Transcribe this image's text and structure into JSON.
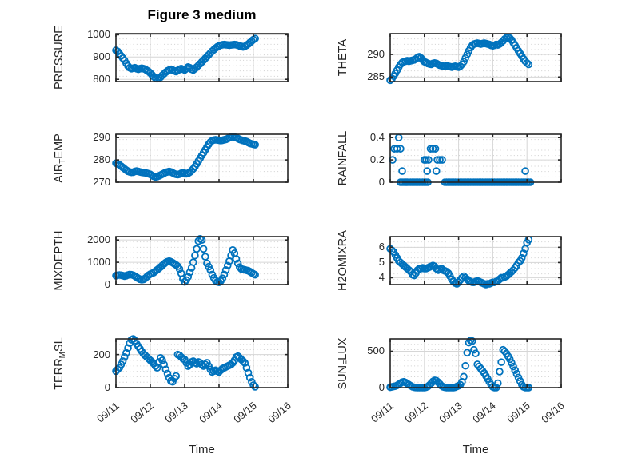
{
  "title": "Figure 3 medium",
  "x_axis": {
    "label": "Time",
    "tick_labels": [
      "09/11",
      "09/12",
      "09/13",
      "09/14",
      "09/15",
      "09/16"
    ],
    "range_days": [
      0,
      5
    ]
  },
  "style": {
    "marker_color": "#0072BD",
    "axis_color": "#262626",
    "grid_color": "#d6d6d6",
    "minor_grid_color": "#cfcfcf",
    "background": "#ffffff"
  },
  "chart_data": {
    "type": "scatter",
    "marker": "open-circle",
    "x_unit": "days since 09/11",
    "subplots": [
      {
        "id": "pressure",
        "position": {
          "col": 0,
          "row": 0
        },
        "ylabel": {
          "pre": "PRESSURE",
          "sub": "",
          "post": ""
        },
        "yticks": [
          800,
          900,
          1000
        ],
        "ylim": [
          790,
          1005
        ],
        "series": {
          "x_start": 0,
          "x_step": 0.05,
          "y": [
            930,
            925,
            915,
            905,
            895,
            885,
            872,
            860,
            852,
            848,
            850,
            852,
            848,
            845,
            848,
            850,
            848,
            845,
            840,
            835,
            828,
            820,
            812,
            806,
            803,
            805,
            810,
            818,
            825,
            832,
            838,
            842,
            845,
            842,
            838,
            835,
            840,
            845,
            848,
            845,
            842,
            848,
            855,
            852,
            845,
            842,
            848,
            855,
            862,
            870,
            878,
            886,
            894,
            902,
            910,
            918,
            926,
            933,
            940,
            946,
            950,
            953,
            955,
            956,
            955,
            954,
            953,
            954,
            955,
            956,
            955,
            953,
            950,
            948,
            945,
            948,
            952,
            958,
            965,
            972,
            978,
            983
          ]
        }
      },
      {
        "id": "theta",
        "position": {
          "col": 1,
          "row": 0
        },
        "ylabel": {
          "pre": "THETA",
          "sub": "",
          "post": ""
        },
        "yticks": [
          285,
          290
        ],
        "ylim": [
          284,
          294.6
        ],
        "series": {
          "x_start": 0,
          "x_step": 0.05,
          "y": [
            284.3,
            284.6,
            285.2,
            285.8,
            286.5,
            287.2,
            287.8,
            288.2,
            288.4,
            288.5,
            288.6,
            288.5,
            288.6,
            288.7,
            288.8,
            289.0,
            289.3,
            289.5,
            289.2,
            288.8,
            288.4,
            288.2,
            288.0,
            287.9,
            287.8,
            288.0,
            288.1,
            288.0,
            287.8,
            287.6,
            287.5,
            287.4,
            287.4,
            287.5,
            287.4,
            287.3,
            287.2,
            287.3,
            287.4,
            287.3,
            287.2,
            287.4,
            287.8,
            288.4,
            289.2,
            290.0,
            290.8,
            291.5,
            292.0,
            292.3,
            292.4,
            292.5,
            292.4,
            292.3,
            292.4,
            292.5,
            292.4,
            292.3,
            292.2,
            292.0,
            291.9,
            292.0,
            292.2,
            292.1,
            292.3,
            292.6,
            293.0,
            293.4,
            293.7,
            293.8,
            293.6,
            293.2,
            292.6,
            292.0,
            291.4,
            290.8,
            290.2,
            289.6,
            289.0,
            288.5,
            288.1,
            287.8
          ]
        }
      },
      {
        "id": "air-temp",
        "position": {
          "col": 0,
          "row": 1
        },
        "ylabel": {
          "pre": "AIR",
          "sub": "T",
          "post": "EMP"
        },
        "yticks": [
          270,
          280,
          290
        ],
        "ylim": [
          270,
          291.5
        ],
        "series": {
          "x_start": 0,
          "x_step": 0.05,
          "y": [
            278.5,
            278.2,
            277.8,
            277.2,
            276.6,
            276.0,
            275.4,
            274.9,
            274.6,
            274.4,
            274.5,
            274.8,
            275.0,
            274.8,
            274.6,
            274.4,
            274.3,
            274.2,
            274.0,
            273.8,
            273.5,
            273.0,
            272.6,
            272.4,
            272.5,
            272.8,
            273.2,
            273.6,
            274.0,
            274.4,
            274.6,
            274.8,
            274.6,
            274.2,
            273.8,
            273.5,
            273.4,
            273.6,
            274.0,
            274.2,
            274.0,
            273.8,
            274.0,
            274.5,
            275.2,
            276.0,
            277.0,
            278.2,
            279.5,
            280.8,
            282.0,
            283.2,
            284.5,
            285.8,
            287.0,
            288.0,
            288.6,
            288.9,
            289.0,
            288.9,
            288.8,
            288.7,
            288.8,
            289.0,
            289.2,
            289.5,
            290.0,
            290.3,
            290.5,
            290.3,
            290.0,
            289.6,
            289.2,
            288.9,
            288.7,
            288.5,
            288.2,
            287.8,
            287.4,
            287.2,
            287.0,
            286.8
          ]
        }
      },
      {
        "id": "rainfall",
        "position": {
          "col": 1,
          "row": 1
        },
        "ylabel": {
          "pre": "RAINFALL",
          "sub": "",
          "post": ""
        },
        "yticks": [
          0,
          0.2,
          0.4
        ],
        "ylim": [
          0,
          0.43
        ],
        "series": {
          "points": [
            [
              0.07,
              0.2
            ],
            [
              0.12,
              0.3
            ],
            [
              0.2,
              0.3
            ],
            [
              0.25,
              0.4
            ],
            [
              0.3,
              0.3
            ],
            [
              0.35,
              0.1
            ],
            [
              1.0,
              0.2
            ],
            [
              1.05,
              0.2
            ],
            [
              1.08,
              0.1
            ],
            [
              1.12,
              0.2
            ],
            [
              1.18,
              0.3
            ],
            [
              1.25,
              0.3
            ],
            [
              1.32,
              0.3
            ],
            [
              1.35,
              0.1
            ],
            [
              1.38,
              0.2
            ],
            [
              1.45,
              0.2
            ],
            [
              1.52,
              0.2
            ],
            [
              3.95,
              0.1
            ]
          ],
          "zero_runs": [
            [
              0.3,
              1.1
            ],
            [
              1.6,
              4.1
            ]
          ],
          "zero_step": 0.05
        }
      },
      {
        "id": "mixdepth",
        "position": {
          "col": 0,
          "row": 2
        },
        "ylabel": {
          "pre": "MIXDEPTH",
          "sub": "",
          "post": ""
        },
        "yticks": [
          0,
          1000,
          2000
        ],
        "ylim": [
          0,
          2150
        ],
        "series": {
          "x_start": 0,
          "x_step": 0.05,
          "y": [
            400,
            420,
            430,
            420,
            400,
            380,
            400,
            430,
            450,
            440,
            420,
            380,
            330,
            280,
            240,
            220,
            230,
            280,
            350,
            420,
            470,
            500,
            540,
            600,
            660,
            720,
            790,
            860,
            930,
            990,
            1030,
            1050,
            1020,
            980,
            930,
            880,
            820,
            700,
            500,
            250,
            120,
            200,
            350,
            550,
            750,
            1000,
            1300,
            1600,
            1950,
            2050,
            2000,
            1600,
            1250,
            950,
            800,
            650,
            450,
            300,
            180,
            120,
            100,
            160,
            280,
            450,
            650,
            850,
            1050,
            1300,
            1550,
            1400,
            1150,
            950,
            780,
            700,
            680,
            660,
            640,
            620,
            580,
            530,
            480,
            440
          ]
        }
      },
      {
        "id": "h2omixra",
        "position": {
          "col": 1,
          "row": 2
        },
        "ylabel": {
          "pre": "H2OMIXRA",
          "sub": "",
          "post": ""
        },
        "yticks": [
          4,
          5,
          6
        ],
        "ylim": [
          3.55,
          6.7
        ],
        "series": {
          "x_start": 0,
          "x_step": 0.05,
          "y": [
            5.9,
            5.8,
            5.7,
            5.5,
            5.3,
            5.1,
            5.0,
            4.9,
            4.8,
            4.7,
            4.6,
            4.5,
            4.4,
            4.2,
            4.15,
            4.3,
            4.5,
            4.6,
            4.6,
            4.65,
            4.6,
            4.6,
            4.65,
            4.7,
            4.75,
            4.8,
            4.75,
            4.6,
            4.5,
            4.55,
            4.6,
            4.5,
            4.45,
            4.4,
            4.3,
            4.1,
            3.9,
            3.75,
            3.65,
            3.6,
            3.7,
            3.85,
            4.0,
            4.1,
            4.0,
            3.9,
            3.8,
            3.75,
            3.7,
            3.7,
            3.75,
            3.8,
            3.75,
            3.7,
            3.65,
            3.6,
            3.55,
            3.6,
            3.6,
            3.65,
            3.7,
            3.7,
            3.75,
            3.8,
            3.9,
            4.0,
            4.0,
            4.05,
            4.1,
            4.2,
            4.3,
            4.4,
            4.5,
            4.65,
            4.8,
            5.0,
            5.1,
            5.3,
            5.6,
            5.9,
            6.3,
            6.5
          ]
        }
      },
      {
        "id": "terr-msl",
        "position": {
          "col": 0,
          "row": 3
        },
        "ylabel": {
          "pre": "TERR",
          "sub": "M",
          "post": "SL"
        },
        "yticks": [
          0,
          200
        ],
        "ylim": [
          0,
          295
        ],
        "series": {
          "x_start": 0,
          "x_step": 0.05,
          "y": [
            100,
            110,
            120,
            140,
            160,
            185,
            210,
            240,
            270,
            290,
            295,
            285,
            265,
            250,
            235,
            220,
            205,
            195,
            185,
            175,
            165,
            155,
            145,
            130,
            120,
            155,
            180,
            165,
            140,
            110,
            85,
            60,
            40,
            35,
            55,
            70,
            200,
            195,
            185,
            175,
            170,
            150,
            130,
            140,
            155,
            160,
            150,
            145,
            155,
            150,
            140,
            130,
            140,
            150,
            130,
            110,
            95,
            100,
            105,
            100,
            95,
            105,
            115,
            120,
            125,
            130,
            135,
            140,
            150,
            165,
            185,
            190,
            180,
            170,
            160,
            150,
            120,
            90,
            60,
            35,
            15,
            5
          ]
        }
      },
      {
        "id": "sun-flux",
        "position": {
          "col": 1,
          "row": 3
        },
        "ylabel": {
          "pre": "SUN",
          "sub": "F",
          "post": "LUX"
        },
        "yticks": [
          0,
          500
        ],
        "ylim": [
          0,
          670
        ],
        "series": {
          "x_start": 0,
          "x_step": 0.05,
          "y": [
            5,
            10,
            15,
            20,
            30,
            45,
            60,
            75,
            80,
            70,
            55,
            40,
            25,
            12,
            5,
            2,
            0,
            0,
            0,
            0,
            0,
            5,
            15,
            35,
            60,
            85,
            100,
            95,
            75,
            50,
            25,
            10,
            3,
            0,
            0,
            0,
            0,
            0,
            5,
            15,
            25,
            40,
            80,
            150,
            300,
            480,
            620,
            650,
            640,
            520,
            470,
            320,
            290,
            260,
            230,
            200,
            160,
            120,
            80,
            40,
            10,
            0,
            0,
            60,
            220,
            350,
            520,
            500,
            470,
            430,
            390,
            340,
            290,
            240,
            190,
            140,
            90,
            40,
            10,
            0,
            0,
            0
          ]
        }
      }
    ]
  }
}
